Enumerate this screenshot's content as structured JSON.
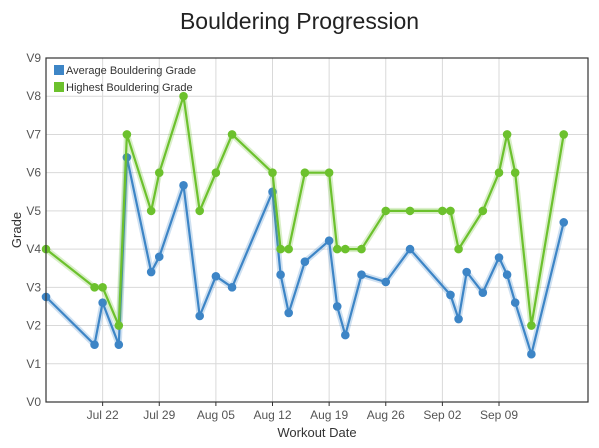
{
  "chart_data": {
    "type": "line",
    "title": "Bouldering Progression",
    "xlabel": "Workout Date",
    "ylabel": "Grade",
    "y_ticks": [
      "V0",
      "V1",
      "V2",
      "V3",
      "V4",
      "V5",
      "V6",
      "V7",
      "V8",
      "V9"
    ],
    "ylim": [
      0,
      9
    ],
    "xlim": [
      "2014-07-15",
      "2014-09-20"
    ],
    "x_ticks": [
      {
        "date": "2014-07-22",
        "label": "Jul 22"
      },
      {
        "date": "2014-07-29",
        "label": "Jul 29"
      },
      {
        "date": "2014-08-05",
        "label": "Aug 05"
      },
      {
        "date": "2014-08-12",
        "label": "Aug 12"
      },
      {
        "date": "2014-08-19",
        "label": "Aug 19"
      },
      {
        "date": "2014-08-26",
        "label": "Aug 26"
      },
      {
        "date": "2014-09-02",
        "label": "Sep 02"
      },
      {
        "date": "2014-09-09",
        "label": "Sep 09"
      }
    ],
    "grid": true,
    "legend_position": "top-left",
    "series": [
      {
        "name": "Average Bouldering Grade",
        "color": "#3d85c6",
        "points": [
          {
            "x": "2014-07-15",
            "y": 2.75
          },
          {
            "x": "2014-07-21",
            "y": 1.5
          },
          {
            "x": "2014-07-22",
            "y": 2.6
          },
          {
            "x": "2014-07-24",
            "y": 1.5
          },
          {
            "x": "2014-07-25",
            "y": 6.4
          },
          {
            "x": "2014-07-28",
            "y": 3.4
          },
          {
            "x": "2014-07-29",
            "y": 3.8
          },
          {
            "x": "2014-08-01",
            "y": 5.67
          },
          {
            "x": "2014-08-03",
            "y": 2.25
          },
          {
            "x": "2014-08-05",
            "y": 3.29
          },
          {
            "x": "2014-08-07",
            "y": 3.0
          },
          {
            "x": "2014-08-12",
            "y": 5.5
          },
          {
            "x": "2014-08-13",
            "y": 3.33
          },
          {
            "x": "2014-08-14",
            "y": 2.33
          },
          {
            "x": "2014-08-16",
            "y": 3.67
          },
          {
            "x": "2014-08-19",
            "y": 4.22
          },
          {
            "x": "2014-08-20",
            "y": 2.5
          },
          {
            "x": "2014-08-21",
            "y": 1.75
          },
          {
            "x": "2014-08-23",
            "y": 3.33
          },
          {
            "x": "2014-08-26",
            "y": 3.14
          },
          {
            "x": "2014-08-29",
            "y": 4.0
          },
          {
            "x": "2014-09-03",
            "y": 2.8
          },
          {
            "x": "2014-09-04",
            "y": 2.17
          },
          {
            "x": "2014-09-05",
            "y": 3.4
          },
          {
            "x": "2014-09-07",
            "y": 2.86
          },
          {
            "x": "2014-09-09",
            "y": 3.78
          },
          {
            "x": "2014-09-10",
            "y": 3.33
          },
          {
            "x": "2014-09-11",
            "y": 2.6
          },
          {
            "x": "2014-09-13",
            "y": 1.25
          },
          {
            "x": "2014-09-17",
            "y": 4.7
          }
        ]
      },
      {
        "name": "Highest Bouldering Grade",
        "color": "#6cc12d",
        "points": [
          {
            "x": "2014-07-15",
            "y": 4
          },
          {
            "x": "2014-07-21",
            "y": 3
          },
          {
            "x": "2014-07-22",
            "y": 3
          },
          {
            "x": "2014-07-24",
            "y": 2
          },
          {
            "x": "2014-07-25",
            "y": 7
          },
          {
            "x": "2014-07-28",
            "y": 5
          },
          {
            "x": "2014-07-29",
            "y": 6
          },
          {
            "x": "2014-08-01",
            "y": 8
          },
          {
            "x": "2014-08-03",
            "y": 5
          },
          {
            "x": "2014-08-05",
            "y": 6
          },
          {
            "x": "2014-08-07",
            "y": 7
          },
          {
            "x": "2014-08-12",
            "y": 6
          },
          {
            "x": "2014-08-13",
            "y": 4
          },
          {
            "x": "2014-08-14",
            "y": 4
          },
          {
            "x": "2014-08-16",
            "y": 6
          },
          {
            "x": "2014-08-19",
            "y": 6
          },
          {
            "x": "2014-08-20",
            "y": 4
          },
          {
            "x": "2014-08-21",
            "y": 4
          },
          {
            "x": "2014-08-23",
            "y": 4
          },
          {
            "x": "2014-08-26",
            "y": 5
          },
          {
            "x": "2014-08-29",
            "y": 5
          },
          {
            "x": "2014-09-02",
            "y": 5
          },
          {
            "x": "2014-09-03",
            "y": 5
          },
          {
            "x": "2014-09-04",
            "y": 4
          },
          {
            "x": "2014-09-07",
            "y": 5
          },
          {
            "x": "2014-09-09",
            "y": 6
          },
          {
            "x": "2014-09-10",
            "y": 7
          },
          {
            "x": "2014-09-11",
            "y": 6
          },
          {
            "x": "2014-09-13",
            "y": 2
          },
          {
            "x": "2014-09-17",
            "y": 7
          }
        ]
      }
    ]
  }
}
